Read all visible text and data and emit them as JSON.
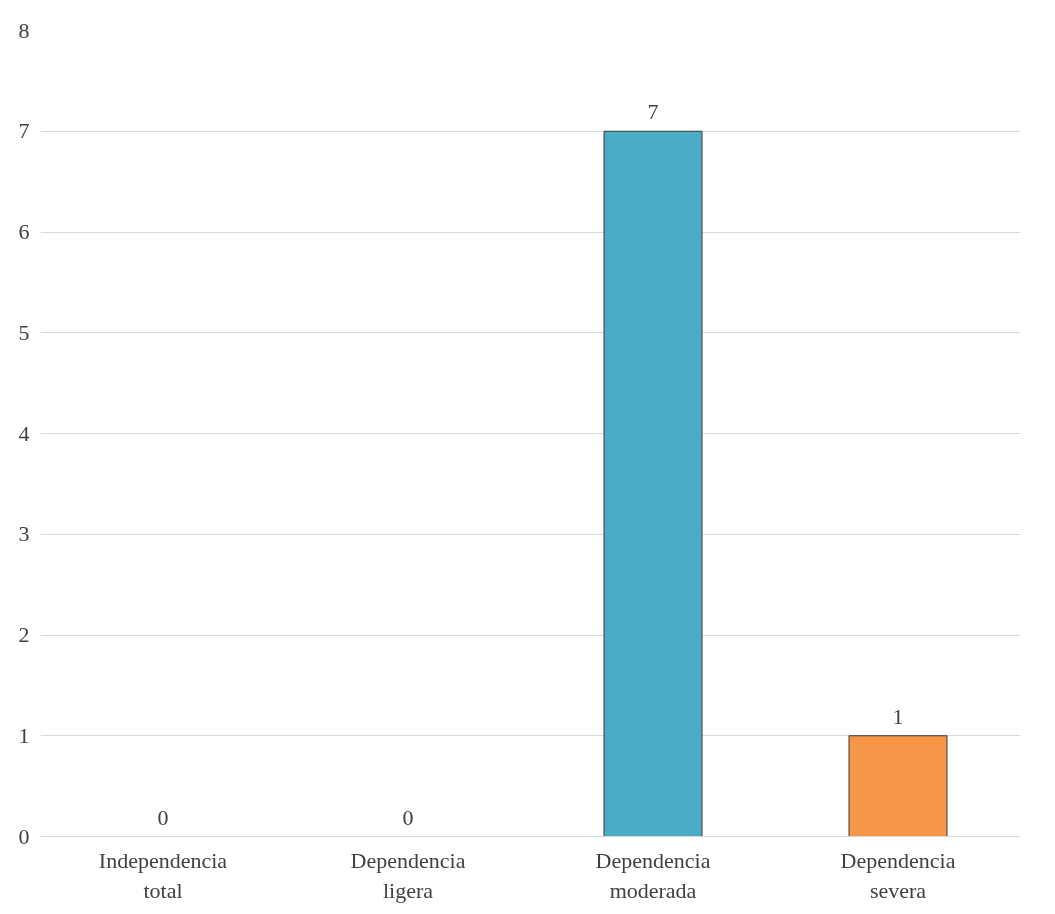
{
  "chart_data": {
    "type": "bar",
    "categories": [
      "Independencia total",
      "Dependencia ligera",
      "Dependencia moderada",
      "Dependencia severa"
    ],
    "values": [
      0,
      0,
      7,
      1
    ],
    "colors": [
      "#4bacc6",
      "#4bacc6",
      "#4bacc6",
      "#f79646"
    ],
    "ylim": [
      0,
      8
    ],
    "yticks": [
      0,
      1,
      2,
      3,
      4,
      5,
      6,
      7,
      8
    ],
    "grid": "y",
    "data_labels": true
  }
}
